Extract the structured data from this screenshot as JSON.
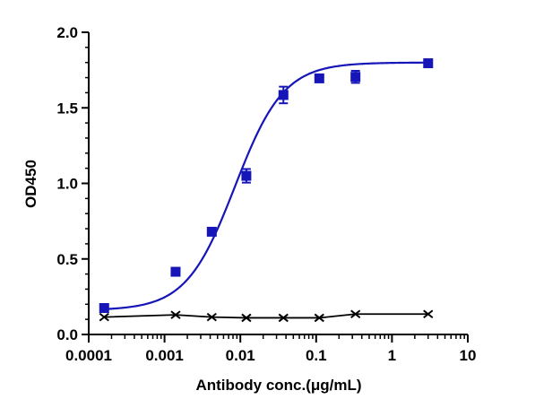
{
  "chart_data": {
    "type": "scatter",
    "title": "",
    "xlabel": "Antibody conc.(μg/mL)",
    "ylabel": "OD450",
    "x_scale": "log",
    "xlim": [
      0.0001,
      10
    ],
    "ylim": [
      0,
      2.0
    ],
    "x_ticks": [
      0.0001,
      0.001,
      0.01,
      0.1,
      1,
      10
    ],
    "x_tick_labels": [
      "0.0001",
      "0.001",
      "0.01",
      "0.1",
      "1",
      "10"
    ],
    "y_ticks": [
      0,
      0.5,
      1.0,
      1.5,
      2.0
    ],
    "y_tick_labels": [
      "0.0",
      "0.5",
      "1.0",
      "1.5",
      "2.0"
    ],
    "grid": false,
    "series": [
      {
        "color": "#1515b8",
        "marker": "square",
        "fit": "4PL",
        "fit_params": {
          "bottom": 0.16,
          "top": 1.8,
          "ec50": 0.0085,
          "hill": 1.35
        },
        "points": [
          {
            "x": 0.00016,
            "y": 0.175,
            "err": 0.0
          },
          {
            "x": 0.0014,
            "y": 0.415,
            "err": 0.0
          },
          {
            "x": 0.0042,
            "y": 0.68,
            "err": 0.0
          },
          {
            "x": 0.012,
            "y": 1.05,
            "err": 0.045
          },
          {
            "x": 0.037,
            "y": 1.585,
            "err": 0.055
          },
          {
            "x": 0.11,
            "y": 1.695,
            "err": 0.0
          },
          {
            "x": 0.33,
            "y": 1.705,
            "err": 0.04
          },
          {
            "x": 3.0,
            "y": 1.795,
            "err": 0.0
          }
        ]
      },
      {
        "color": "#000000",
        "marker": "x",
        "fit": "line",
        "points": [
          {
            "x": 0.00016,
            "y": 0.115
          },
          {
            "x": 0.0014,
            "y": 0.13
          },
          {
            "x": 0.0042,
            "y": 0.115
          },
          {
            "x": 0.012,
            "y": 0.11
          },
          {
            "x": 0.037,
            "y": 0.11
          },
          {
            "x": 0.11,
            "y": 0.11
          },
          {
            "x": 0.33,
            "y": 0.135
          },
          {
            "x": 3.0,
            "y": 0.135
          }
        ]
      }
    ]
  }
}
